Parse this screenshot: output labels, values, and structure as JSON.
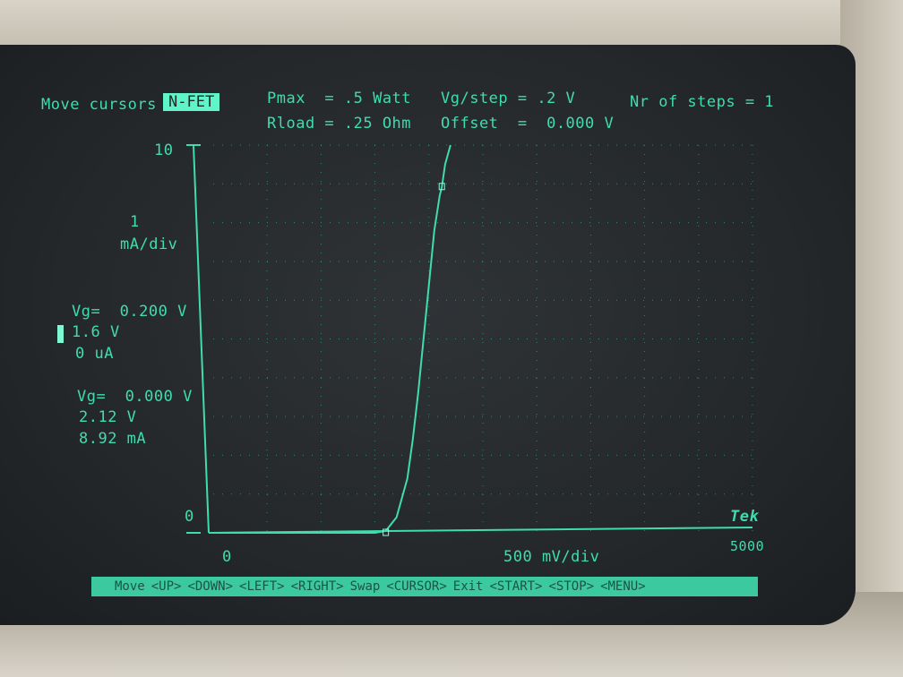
{
  "header": {
    "mode_label": "Move cursors",
    "device_badge": "N-FET",
    "pmax": "Pmax  = .5 Watt",
    "rload": "Rload = .25 Ohm",
    "vg_step": "Vg/step = .2 V",
    "offset": "Offset  =  0.000 V",
    "steps": "Nr of steps = 1"
  },
  "y_axis": {
    "top_tick": "10",
    "bottom_tick": "0",
    "scale_value": "1",
    "scale_unit": "mA/div"
  },
  "x_axis": {
    "left_tick": "0",
    "right_tick": "5000",
    "scale": "500 mV/div"
  },
  "cursor1": {
    "vg": "Vg=  0.200 V",
    "voltage": "1.6 V",
    "current": "0 uA"
  },
  "cursor2": {
    "vg": "Vg=  0.000 V",
    "voltage": "2.12 V",
    "current": "8.92 mA"
  },
  "brand": "Tek",
  "statusbar": {
    "items": [
      "Move",
      "<UP>",
      "<DOWN>",
      "<LEFT>",
      "<RIGHT>",
      "Swap",
      "<CURSOR>",
      "Exit",
      "<START>",
      "<STOP>",
      "<MENU>"
    ]
  },
  "chart_data": {
    "type": "line",
    "xlabel": "500 mV/div",
    "ylabel": "1 mA/div",
    "xlim": [
      0,
      5000
    ],
    "ylim": [
      0,
      10
    ],
    "grid": true,
    "series": [
      {
        "x": [
          0,
          1400,
          1500,
          1600,
          1700,
          1800,
          1850,
          1900,
          1950,
          2000,
          2050,
          2100,
          2120,
          2150,
          2200
        ],
        "y": [
          0,
          0,
          0,
          0.05,
          0.4,
          1.4,
          2.4,
          3.6,
          5.0,
          6.4,
          7.8,
          8.7,
          8.92,
          9.5,
          10
        ]
      }
    ],
    "cursors": [
      {
        "x": 1600,
        "y": 0
      },
      {
        "x": 2120,
        "y": 8.92
      }
    ]
  },
  "colors": {
    "phosphor": "#3fdcae",
    "highlight": "#5ff5c8",
    "screen": "#24282a"
  }
}
